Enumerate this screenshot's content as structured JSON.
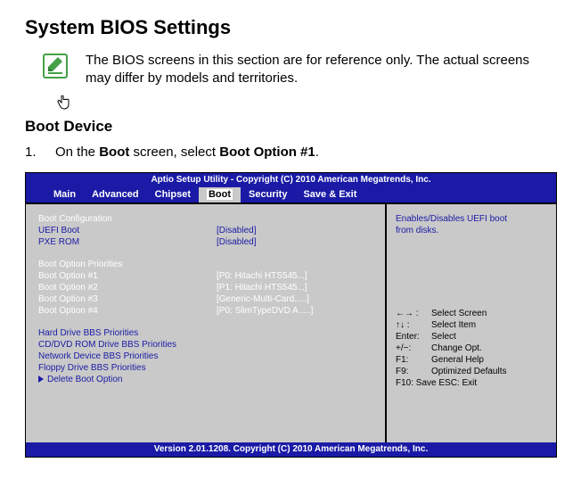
{
  "title": "System BIOS Settings",
  "note": "The BIOS screens in this section are for reference only. The actual screens may differ by models and territories.",
  "subhead": "Boot Device",
  "step_num": "1.",
  "step_pre": "On the ",
  "step_b1": "Boot",
  "step_mid": " screen, select ",
  "step_b2": "Boot Option #1",
  "step_post": ".",
  "bios": {
    "top": "Aptio Setup Utility - Copyright (C) 2010 American Megatrends, Inc.",
    "bottom": "Version 2.01.1208. Copyright (C) 2010 American Megatrends, Inc.",
    "menu": [
      "Main",
      "Advanced",
      "Chipset",
      "Boot",
      "Security",
      "Save & Exit"
    ],
    "active_menu": 3,
    "left": {
      "cfg_head": "Boot Configuration",
      "uefi_lbl": "UEFI Boot",
      "uefi_val": "[Disabled]",
      "pxe_lbl": "PXE ROM",
      "pxe_val": "[Disabled]",
      "prio_head": "Boot Option Priorities",
      "b1_lbl": "Boot Option #1",
      "b1_val": "[P0:  Hitachi HTS545...]",
      "b2_lbl": "Boot Option #2",
      "b2_val": "[P1:  Hitachi HTS545...]",
      "b3_lbl": "Boot Option #3",
      "b3_val": "[Generic-Multi-Card.....]",
      "b4_lbl": "Boot Option #4",
      "b4_val": "[P0:  SlimTypeDVD A.....]",
      "hdd": "Hard Drive BBS Priorities",
      "cd": "CD/DVD ROM Drive BBS Priorities",
      "net": "Network Device BBS Priorities",
      "flp": "Floppy Drive BBS Priorities",
      "del": "Delete Boot Option"
    },
    "right": {
      "help1": "Enables/Disables UEFI boot",
      "help2": "from disks.",
      "l1k": "←→ :",
      "l1v": "Select Screen",
      "l2k": "↑↓ :",
      "l2v": "Select Item",
      "l3k": "Enter:",
      "l3v": "Select",
      "l4k": "+/−:",
      "l4v": "Change Opt.",
      "l5k": "F1:",
      "l5v": "General Help",
      "l6k": "F9:",
      "l6v": "Optimized Defaults",
      "l7": "F10:   Save    ESC:  Exit"
    }
  }
}
